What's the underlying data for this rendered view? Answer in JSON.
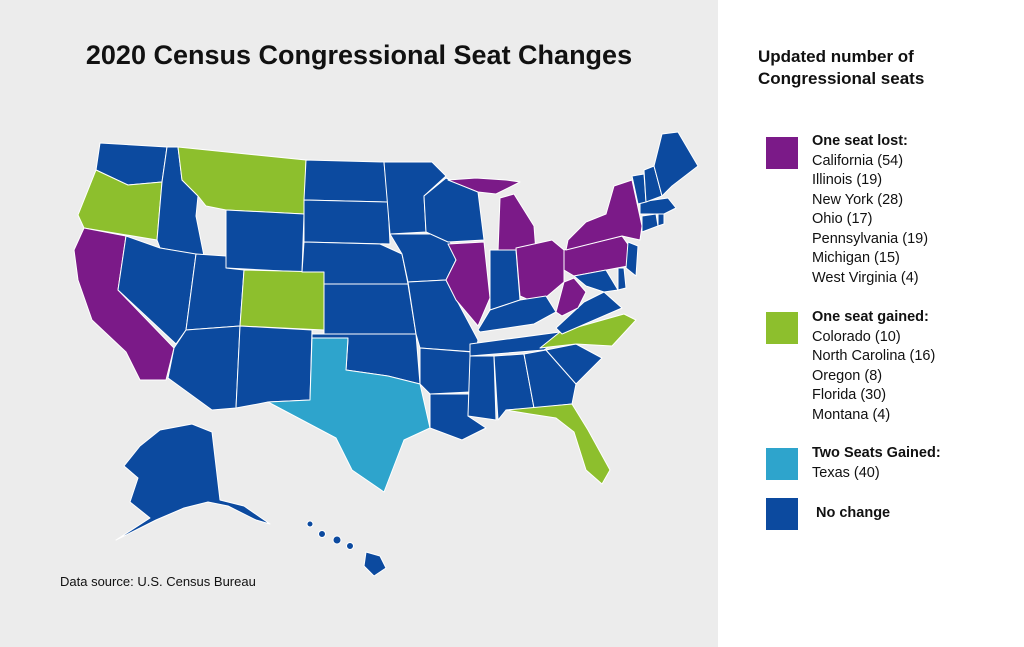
{
  "title": "2020 Census Congressional Seat Changes",
  "source": "Data source: U.S. Census Bureau",
  "colors": {
    "lost": "#7b1a88",
    "gained_one": "#8dbf2d",
    "gained_two": "#2ea4cc",
    "no_change": "#0c4a9f",
    "background": "#ececec",
    "border": "#ffffff"
  },
  "legend": {
    "title_line1": "Updated number of",
    "title_line2": "Congressional seats",
    "lost": {
      "heading": "One seat lost:",
      "items": [
        "California (54)",
        "Illinois (19)",
        "New York (28)",
        "Ohio (17)",
        "Pennsylvania (19)",
        "Michigan (15)",
        "West Virginia (4)"
      ]
    },
    "gained_one": {
      "heading": "One seat gained:",
      "items": [
        "Colorado (10)",
        "North Carolina (16)",
        "Oregon (8)",
        "Florida (30)",
        "Montana (4)"
      ]
    },
    "gained_two": {
      "heading": "Two Seats Gained:",
      "items": [
        "Texas (40)"
      ]
    },
    "no_change": {
      "heading": "No change"
    }
  },
  "states": {
    "lost": [
      "California",
      "Illinois",
      "New York",
      "Ohio",
      "Pennsylvania",
      "Michigan",
      "West Virginia"
    ],
    "gained_one": [
      "Colorado",
      "North Carolina",
      "Oregon",
      "Florida",
      "Montana"
    ],
    "gained_two": [
      "Texas"
    ],
    "no_change": [
      "Washington",
      "Idaho",
      "Nevada",
      "Arizona",
      "Utah",
      "Wyoming",
      "New Mexico",
      "North Dakota",
      "South Dakota",
      "Nebraska",
      "Kansas",
      "Oklahoma",
      "Minnesota",
      "Iowa",
      "Missouri",
      "Arkansas",
      "Louisiana",
      "Wisconsin",
      "Indiana",
      "Kentucky",
      "Tennessee",
      "Mississippi",
      "Alabama",
      "Georgia",
      "South Carolina",
      "Virginia",
      "Maryland",
      "Delaware",
      "New Jersey",
      "Connecticut",
      "Rhode Island",
      "Massachusetts",
      "Vermont",
      "New Hampshire",
      "Maine",
      "Alaska",
      "Hawaii"
    ]
  }
}
